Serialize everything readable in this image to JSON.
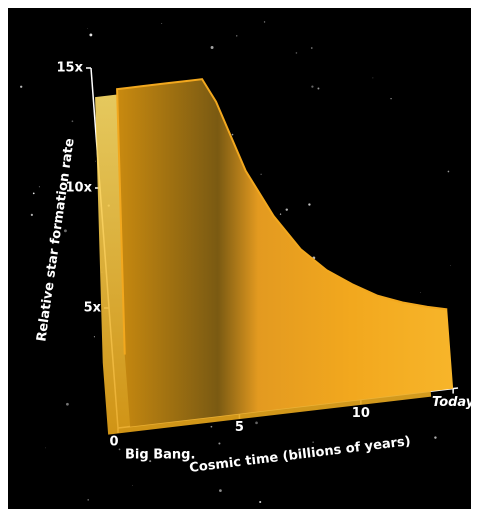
{
  "chart_data": {
    "type": "area",
    "ylabel": "Relative star formation rate",
    "xlabel": "Cosmic time (billions of years)",
    "annotations": [
      "Big Bang."
    ],
    "x": [
      0.5,
      1,
      2,
      3,
      4,
      4.5,
      5,
      6,
      7,
      8,
      9,
      10,
      11,
      12,
      13,
      13.8
    ],
    "values": [
      3,
      14,
      14,
      14,
      14,
      14,
      13,
      10,
      8,
      6.5,
      5.5,
      4.8,
      4.2,
      3.8,
      3.5,
      3.3
    ],
    "color": "#f2a81e",
    "xlim": [
      0,
      14
    ],
    "ylim": [
      0,
      15
    ],
    "xticks": [
      0,
      5,
      10,
      {
        "value": 13.8,
        "label": "Today"
      }
    ],
    "yticks": [
      {
        "value": 5,
        "label": "5x"
      },
      {
        "value": 10,
        "label": "10x"
      },
      {
        "value": 15,
        "label": "15x"
      }
    ]
  }
}
